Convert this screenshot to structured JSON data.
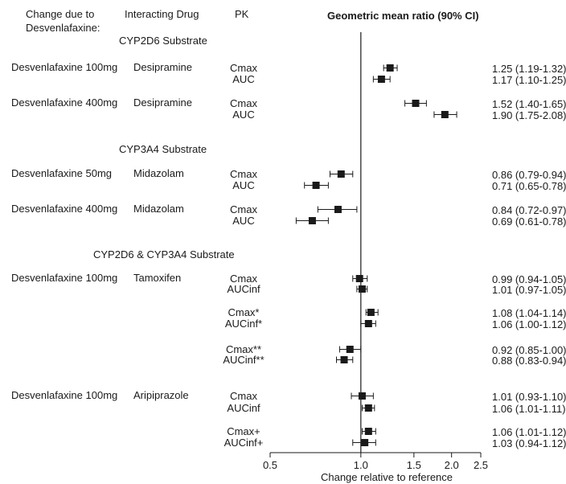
{
  "chart_data": {
    "type": "forest",
    "header": {
      "col1": [
        "Change due to",
        "Desvenlafaxine:"
      ],
      "col2": "Interacting Drug",
      "col3": "PK",
      "col4": "Geometric mean ratio (90% CI)"
    },
    "xlabel": "Change relative to reference",
    "x_scale": "log",
    "xlim": [
      0.5,
      2.5
    ],
    "reference_line": 1.0,
    "ticks": [
      {
        "value": 0.5,
        "label": "0.5"
      },
      {
        "value": 1.0,
        "label": "1.0"
      },
      {
        "value": 1.5,
        "label": "1.5"
      },
      {
        "value": 2.0,
        "label": "2.0"
      },
      {
        "value": 2.5,
        "label": "2.5"
      }
    ],
    "sections": [
      {
        "title": "CYP2D6 Substrate",
        "groups": [
          {
            "change": "Desvenlafaxine 100mg",
            "drug": "Desipramine",
            "rows": [
              {
                "pk": "Cmax",
                "ratio": 1.25,
                "lo": 1.19,
                "hi": 1.32,
                "text": "1.25 (1.19-1.32)"
              },
              {
                "pk": "AUC",
                "ratio": 1.17,
                "lo": 1.1,
                "hi": 1.25,
                "text": "1.17 (1.10-1.25)"
              }
            ]
          },
          {
            "change": "Desvenlafaxine 400mg",
            "drug": "Desipramine",
            "rows": [
              {
                "pk": "Cmax",
                "ratio": 1.52,
                "lo": 1.4,
                "hi": 1.65,
                "text": "1.52 (1.40-1.65)"
              },
              {
                "pk": "AUC",
                "ratio": 1.9,
                "lo": 1.75,
                "hi": 2.08,
                "text": "1.90 (1.75-2.08)"
              }
            ]
          }
        ]
      },
      {
        "title": "CYP3A4 Substrate",
        "groups": [
          {
            "change": "Desvenlafaxine 50mg",
            "drug": "Midazolam",
            "rows": [
              {
                "pk": "Cmax",
                "ratio": 0.86,
                "lo": 0.79,
                "hi": 0.94,
                "text": "0.86 (0.79-0.94)"
              },
              {
                "pk": "AUC",
                "ratio": 0.71,
                "lo": 0.65,
                "hi": 0.78,
                "text": "0.71 (0.65-0.78)"
              }
            ]
          },
          {
            "change": "Desvenlafaxine 400mg",
            "drug": "Midazolam",
            "rows": [
              {
                "pk": "Cmax",
                "ratio": 0.84,
                "lo": 0.72,
                "hi": 0.97,
                "text": "0.84 (0.72-0.97)"
              },
              {
                "pk": "AUC",
                "ratio": 0.69,
                "lo": 0.61,
                "hi": 0.78,
                "text": "0.69 (0.61-0.78)"
              }
            ]
          }
        ]
      },
      {
        "title": "CYP2D6 & CYP3A4 Substrate",
        "groups": [
          {
            "change": "Desvenlafaxine 100mg",
            "drug": "Tamoxifen",
            "rows": [
              {
                "pk": "Cmax",
                "ratio": 0.99,
                "lo": 0.94,
                "hi": 1.05,
                "text": "0.99 (0.94-1.05)"
              },
              {
                "pk": "AUCinf",
                "ratio": 1.01,
                "lo": 0.97,
                "hi": 1.05,
                "text": "1.01 (0.97-1.05)"
              },
              {
                "pk": "Cmax*",
                "ratio": 1.08,
                "lo": 1.04,
                "hi": 1.14,
                "text": "1.08 (1.04-1.14)"
              },
              {
                "pk": "AUCinf*",
                "ratio": 1.06,
                "lo": 1.0,
                "hi": 1.12,
                "text": "1.06 (1.00-1.12)"
              },
              {
                "pk": "Cmax**",
                "ratio": 0.92,
                "lo": 0.85,
                "hi": 1.0,
                "text": "0.92 (0.85-1.00)"
              },
              {
                "pk": "AUCinf**",
                "ratio": 0.88,
                "lo": 0.83,
                "hi": 0.94,
                "text": "0.88 (0.83-0.94)"
              }
            ]
          },
          {
            "change": "Desvenlafaxine 100mg",
            "drug": "Aripiprazole",
            "rows": [
              {
                "pk": "Cmax",
                "ratio": 1.01,
                "lo": 0.93,
                "hi": 1.1,
                "text": "1.01 (0.93-1.10)"
              },
              {
                "pk": "AUCinf",
                "ratio": 1.06,
                "lo": 1.01,
                "hi": 1.11,
                "text": "1.06 (1.01-1.11)"
              },
              {
                "pk": "Cmax+",
                "ratio": 1.06,
                "lo": 1.01,
                "hi": 1.12,
                "text": "1.06 (1.01-1.12)"
              },
              {
                "pk": "AUCinf+",
                "ratio": 1.03,
                "lo": 0.94,
                "hi": 1.12,
                "text": "1.03 (0.94-1.12)"
              }
            ]
          }
        ]
      }
    ]
  }
}
